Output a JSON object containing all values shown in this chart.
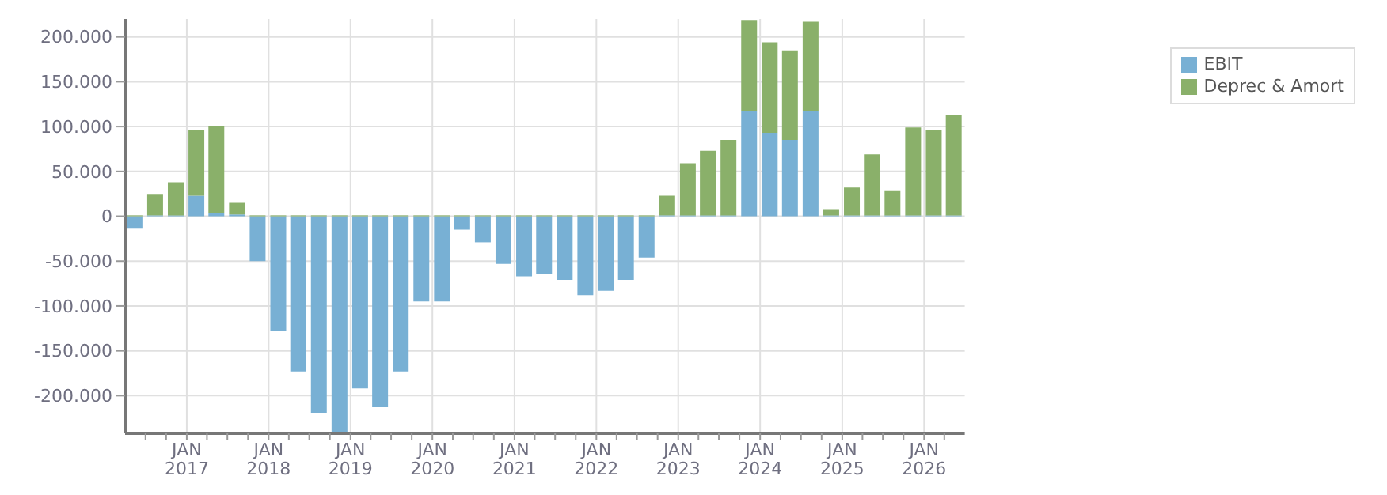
{
  "chart_data": {
    "type": "bar",
    "stacked": true,
    "x": [
      "2016-05-15",
      "2016-08-15",
      "2016-11-15",
      "2017-02-15",
      "2017-05-15",
      "2017-08-15",
      "2017-11-15",
      "2018-02-15",
      "2018-05-15",
      "2018-08-15",
      "2018-11-15",
      "2019-02-15",
      "2019-05-15",
      "2019-08-15",
      "2019-11-15",
      "2020-02-15",
      "2020-05-15",
      "2020-08-15",
      "2020-11-15",
      "2021-02-15",
      "2021-05-15",
      "2021-08-15",
      "2021-11-15",
      "2022-02-15",
      "2022-05-15",
      "2022-08-15",
      "2022-11-15",
      "2023-02-15",
      "2023-05-15",
      "2023-08-15",
      "2023-11-15",
      "2024-02-15",
      "2024-05-15",
      "2024-08-15",
      "2024-11-15",
      "2025-02-15",
      "2025-05-15",
      "2025-08-15",
      "2025-11-15",
      "2026-02-15",
      "2026-05-15"
    ],
    "series": [
      {
        "name": "EBIT",
        "color": "#78b0d4",
        "values": [
          -13000,
          1000,
          1000,
          23000,
          4000,
          2000,
          -50000,
          -128000,
          -173000,
          -219000,
          -241000,
          -192000,
          -213000,
          -173000,
          -95000,
          -95000,
          -15000,
          -29000,
          -53000,
          -67000,
          -64000,
          -71000,
          -88000,
          -83000,
          -71000,
          -46000,
          1000,
          1000,
          1000,
          1000,
          117000,
          93000,
          85000,
          117000,
          1000,
          1000,
          1000,
          1000,
          1000,
          1000,
          1000
        ]
      },
      {
        "name": "Deprec & Amort",
        "color": "#8ab06a",
        "values": [
          1000,
          24000,
          37000,
          73000,
          97000,
          13000,
          1000,
          1000,
          1000,
          1000,
          1000,
          1000,
          1000,
          1000,
          1000,
          1000,
          1000,
          1000,
          1000,
          1000,
          1000,
          1000,
          1000,
          1000,
          1000,
          1000,
          22000,
          58000,
          72000,
          84000,
          102000,
          101000,
          100000,
          100000,
          7000,
          31000,
          68000,
          28000,
          98000,
          95000,
          112000
        ]
      }
    ],
    "xlim": [
      "2016-04-01",
      "2026-07-01"
    ],
    "xticks": [
      {
        "value": "2016-07-01",
        "label": null
      },
      {
        "value": "2016-10-01",
        "label": null
      },
      {
        "value": "2017-01-01",
        "label": "JAN 2017"
      },
      {
        "value": "2017-04-01",
        "label": null
      },
      {
        "value": "2017-07-01",
        "label": null
      },
      {
        "value": "2017-10-01",
        "label": null
      },
      {
        "value": "2018-01-01",
        "label": "JAN 2018"
      },
      {
        "value": "2018-04-01",
        "label": null
      },
      {
        "value": "2018-07-01",
        "label": null
      },
      {
        "value": "2018-10-01",
        "label": null
      },
      {
        "value": "2019-01-01",
        "label": "JAN 2019"
      },
      {
        "value": "2019-04-01",
        "label": null
      },
      {
        "value": "2019-07-01",
        "label": null
      },
      {
        "value": "2019-10-01",
        "label": null
      },
      {
        "value": "2020-01-01",
        "label": "JAN 2020"
      },
      {
        "value": "2020-04-01",
        "label": null
      },
      {
        "value": "2020-07-01",
        "label": null
      },
      {
        "value": "2020-10-01",
        "label": null
      },
      {
        "value": "2021-01-01",
        "label": "JAN 2021"
      },
      {
        "value": "2021-04-01",
        "label": null
      },
      {
        "value": "2021-07-01",
        "label": null
      },
      {
        "value": "2021-10-01",
        "label": null
      },
      {
        "value": "2022-01-01",
        "label": "JAN 2022"
      },
      {
        "value": "2022-04-01",
        "label": null
      },
      {
        "value": "2022-07-01",
        "label": null
      },
      {
        "value": "2022-10-01",
        "label": null
      },
      {
        "value": "2023-01-01",
        "label": "JAN 2023"
      },
      {
        "value": "2023-04-01",
        "label": null
      },
      {
        "value": "2023-07-01",
        "label": null
      },
      {
        "value": "2023-10-01",
        "label": null
      },
      {
        "value": "2024-01-01",
        "label": "JAN 2024"
      },
      {
        "value": "2024-04-01",
        "label": null
      },
      {
        "value": "2024-07-01",
        "label": null
      },
      {
        "value": "2024-10-01",
        "label": null
      },
      {
        "value": "2025-01-01",
        "label": "JAN 2025"
      },
      {
        "value": "2025-04-01",
        "label": null
      },
      {
        "value": "2025-07-01",
        "label": null
      },
      {
        "value": "2025-10-01",
        "label": null
      },
      {
        "value": "2026-01-01",
        "label": "JAN 2026"
      },
      {
        "value": "2026-04-01",
        "label": null
      }
    ],
    "ylim": [
      -242000,
      220000
    ],
    "yticks": [
      {
        "value": -200000,
        "label": "-200.000"
      },
      {
        "value": -150000,
        "label": "-150.000"
      },
      {
        "value": -100000,
        "label": "-100.000"
      },
      {
        "value": -50000,
        "label": "-50.000"
      },
      {
        "value": 0,
        "label": "0"
      },
      {
        "value": 50000,
        "label": "50.000"
      },
      {
        "value": 100000,
        "label": "100.000"
      },
      {
        "value": 150000,
        "label": "150.000"
      },
      {
        "value": 200000,
        "label": "200.000"
      }
    ],
    "grid": true,
    "legend": "top right"
  }
}
